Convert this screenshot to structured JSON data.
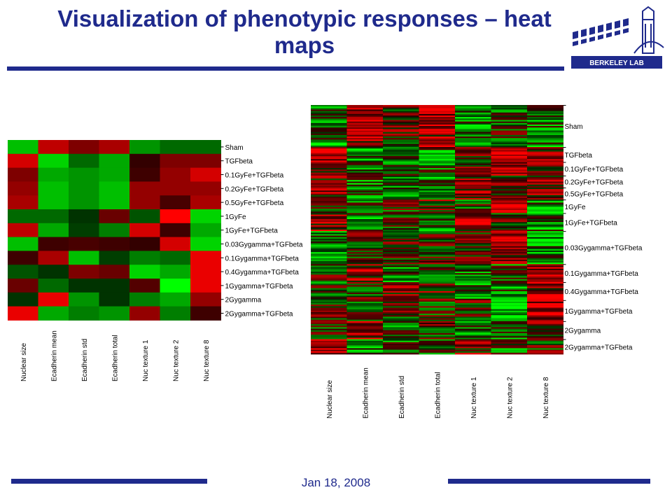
{
  "title": "Visualization of phenotypic responses – heat maps",
  "logo": {
    "text": "BERKELEY LAB",
    "icon": "berkeley-lab-logo"
  },
  "footer": {
    "date": "Jan 18,  2008"
  },
  "colors": {
    "brand": "#1f2a8c"
  },
  "chart_data": [
    {
      "type": "heatmap",
      "title": "",
      "columns": [
        "Nuclear size",
        "Ecadherin mean",
        "Ecadherin std",
        "Ecadherin total",
        "Nuc texture 1",
        "Nuc texture 2",
        "Nuc texture 8"
      ],
      "rows": [
        "Sham",
        "TGFbeta",
        "0.1GyFe+TGFbeta",
        "0.2GyFe+TGFbeta",
        "0.5GyFe+TGFbeta",
        "1GyFe",
        "1GyFe+TGFbeta",
        "0.03Gygamma+TGFbeta",
        "0.1Gygamma+TGFbeta",
        "0.4Gygamma+TGFbeta",
        "1Gygamma+TGFbeta",
        "2Gygamma",
        "2Gygamma+TGFbeta"
      ],
      "values": [
        [
          0.7,
          -0.7,
          -0.4,
          -0.6,
          0.5,
          0.3,
          0.3
        ],
        [
          -0.8,
          0.8,
          0.3,
          0.6,
          -0.05,
          -0.4,
          -0.4
        ],
        [
          -0.4,
          0.6,
          0.5,
          0.6,
          -0.1,
          -0.5,
          -0.8
        ],
        [
          -0.5,
          0.7,
          0.5,
          0.7,
          -0.5,
          -0.5,
          -0.5
        ],
        [
          -0.6,
          0.7,
          0.5,
          0.7,
          -0.5,
          -0.15,
          -0.6
        ],
        [
          0.3,
          0.3,
          0.05,
          -0.3,
          0.2,
          -1.0,
          0.8
        ],
        [
          -0.7,
          0.6,
          0.1,
          0.4,
          -0.8,
          -0.1,
          0.6
        ],
        [
          0.7,
          -0.1,
          -0.15,
          -0.1,
          -0.05,
          -0.8,
          0.8
        ],
        [
          -0.1,
          -0.6,
          0.7,
          0.1,
          0.4,
          0.3,
          -0.9
        ],
        [
          0.2,
          0.05,
          -0.4,
          -0.3,
          0.8,
          0.6,
          -0.9
        ],
        [
          -0.3,
          0.3,
          0.05,
          0.05,
          -0.2,
          1.0,
          -0.9
        ],
        [
          0.05,
          -0.9,
          0.5,
          0.05,
          0.4,
          0.6,
          -0.5
        ],
        [
          -0.9,
          0.6,
          0.4,
          0.5,
          -0.5,
          0.4,
          -0.1
        ]
      ]
    },
    {
      "type": "heatmap",
      "title": "",
      "columns": [
        "Nuclear size",
        "Ecadherin mean",
        "Ecadherin std",
        "Ecadherin total",
        "Nuc texture 1",
        "Nuc texture 2",
        "Nuc texture 8"
      ],
      "rows": [
        "Sham",
        "TGFbeta",
        "0.1GyFe+TGFbeta",
        "0.2GyFe+TGFbeta",
        "0.5GyFe+TGFbeta",
        "1GyFe",
        "1GyFe+TGFbeta",
        "0.03Gygamma+TGFbeta",
        "0.1Gygamma+TGFbeta",
        "0.4Gygamma+TGFbeta",
        "1Gygamma+TGFbeta",
        "2Gygamma",
        "2Gygamma+TGFbeta"
      ],
      "row_group_sizes": [
        28,
        10,
        9,
        8,
        8,
        9,
        12,
        22,
        12,
        12,
        14,
        12,
        10
      ],
      "column_bias": [
        [
          0.4,
          -0.6,
          -0.2,
          -0.5,
          0.4,
          0.1,
          0.4
        ],
        [
          -0.6,
          0.5,
          0.3,
          0.4,
          -0.2,
          -0.4,
          -0.3
        ],
        [
          -0.3,
          0.3,
          0.3,
          0.3,
          -0.2,
          -0.4,
          -0.5
        ],
        [
          -0.3,
          0.4,
          0.3,
          0.4,
          -0.3,
          -0.3,
          -0.3
        ],
        [
          -0.4,
          0.4,
          0.3,
          0.4,
          -0.3,
          -0.1,
          -0.4
        ],
        [
          0.2,
          0.2,
          0.0,
          -0.2,
          0.1,
          -0.6,
          0.5
        ],
        [
          -0.5,
          0.4,
          0.1,
          0.3,
          -0.5,
          -0.1,
          0.4
        ],
        [
          0.5,
          -0.1,
          -0.1,
          -0.1,
          0.0,
          -0.5,
          0.5
        ],
        [
          -0.1,
          -0.4,
          0.4,
          0.1,
          0.3,
          0.2,
          -0.6
        ],
        [
          0.1,
          0.0,
          -0.3,
          -0.2,
          0.5,
          0.4,
          -0.6
        ],
        [
          -0.2,
          0.2,
          0.0,
          0.0,
          -0.1,
          0.7,
          -0.6
        ],
        [
          0.0,
          -0.6,
          0.3,
          0.0,
          0.3,
          0.4,
          -0.3
        ],
        [
          -0.6,
          0.4,
          0.3,
          0.3,
          -0.3,
          0.3,
          -0.1
        ]
      ]
    }
  ]
}
